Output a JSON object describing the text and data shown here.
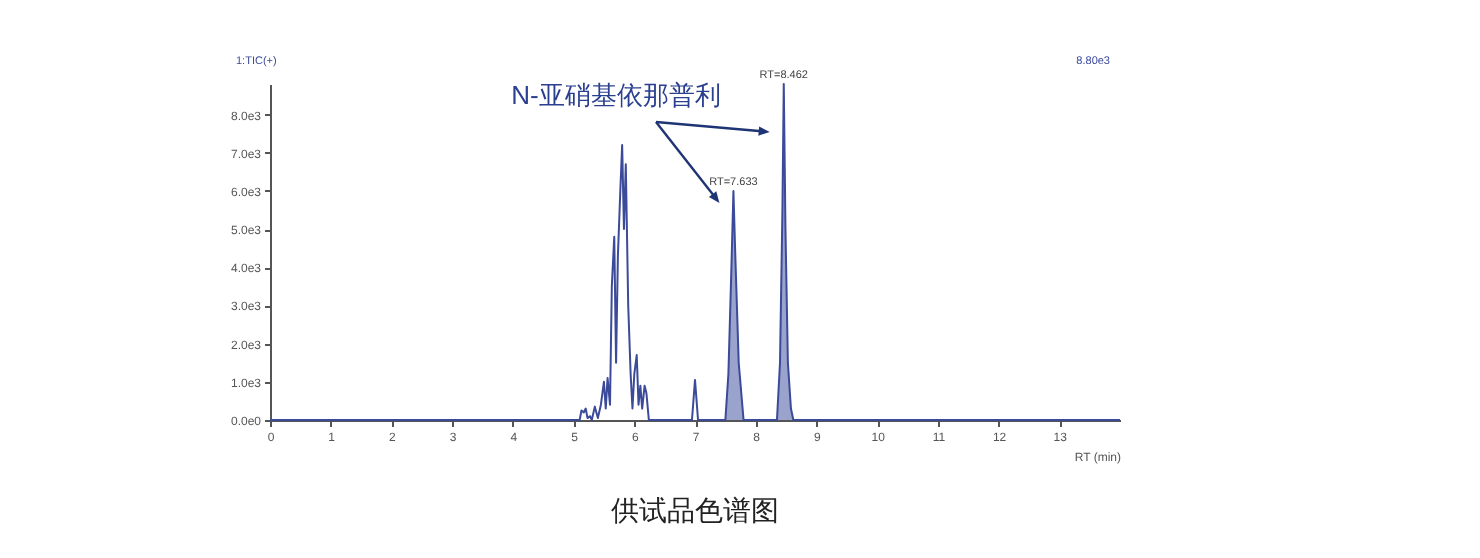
{
  "chart_data": {
    "type": "line",
    "title": "供试品色谱图",
    "xlabel": "RT (min)",
    "xlim": [
      0,
      14
    ],
    "xticks": [
      0,
      1,
      2,
      3,
      4,
      5,
      6,
      7,
      8,
      9,
      10,
      11,
      12,
      13
    ],
    "ylim": [
      0,
      8800
    ],
    "yticks": [
      {
        "value": 0,
        "label": "0.0e0"
      },
      {
        "value": 1000,
        "label": "1.0e3"
      },
      {
        "value": 2000,
        "label": "2.0e3"
      },
      {
        "value": 3000,
        "label": "3.0e3"
      },
      {
        "value": 4000,
        "label": "4.0e3"
      },
      {
        "value": 5000,
        "label": "5.0e3"
      },
      {
        "value": 6000,
        "label": "6.0e3"
      },
      {
        "value": 7000,
        "label": "7.0e3"
      },
      {
        "value": 8000,
        "label": "8.0e3"
      }
    ],
    "grid": false,
    "annotations": [
      "1:TIC(+)",
      "8.80e3",
      "N-亚硝基依那普利",
      {
        "text": "RT=7.633",
        "x": 7.633,
        "y": 6000
      },
      {
        "text": "RT=8.462",
        "x": 8.462,
        "y": 8800
      }
    ],
    "series": [
      {
        "type": "area",
        "color": "#9aa3cc",
        "x": [
          7.5,
          7.55,
          7.6,
          7.633,
          7.66,
          7.72,
          7.8
        ],
        "values": [
          0,
          1200,
          4000,
          6000,
          4500,
          1500,
          0
        ]
      },
      {
        "type": "area",
        "color": "#9aa3cc",
        "x": [
          8.35,
          8.4,
          8.44,
          8.462,
          8.49,
          8.53,
          8.58,
          8.62
        ],
        "values": [
          0,
          1500,
          5500,
          8800,
          5000,
          1500,
          300,
          0
        ]
      },
      {
        "color": "#3c4a9a",
        "x": [
          0,
          5.1,
          5.13,
          5.17,
          5.2,
          5.23,
          5.27,
          5.3,
          5.35,
          5.4,
          5.45,
          5.5,
          5.53,
          5.56,
          5.6,
          5.63,
          5.67,
          5.7,
          5.73,
          5.77,
          5.8,
          5.83,
          5.86,
          5.9,
          5.94,
          5.97,
          6.0,
          6.04,
          6.07,
          6.1,
          6.13,
          6.17,
          6.2,
          6.24,
          6.95,
          7.0,
          7.05,
          7.5,
          7.55,
          7.6,
          7.633,
          7.66,
          7.72,
          7.8,
          8.35,
          8.4,
          8.44,
          8.462,
          8.49,
          8.53,
          8.58,
          8.62,
          14
        ],
        "values": [
          0,
          0,
          250,
          200,
          300,
          50,
          100,
          0,
          350,
          50,
          400,
          1000,
          300,
          1100,
          400,
          3500,
          4800,
          1500,
          4300,
          6000,
          7200,
          5000,
          6700,
          3000,
          1200,
          300,
          1200,
          1700,
          400,
          900,
          300,
          900,
          700,
          0,
          0,
          1050,
          0,
          0,
          1200,
          4000,
          6000,
          4500,
          1500,
          0,
          0,
          1500,
          5500,
          8800,
          5000,
          1500,
          300,
          0,
          0
        ]
      }
    ]
  }
}
